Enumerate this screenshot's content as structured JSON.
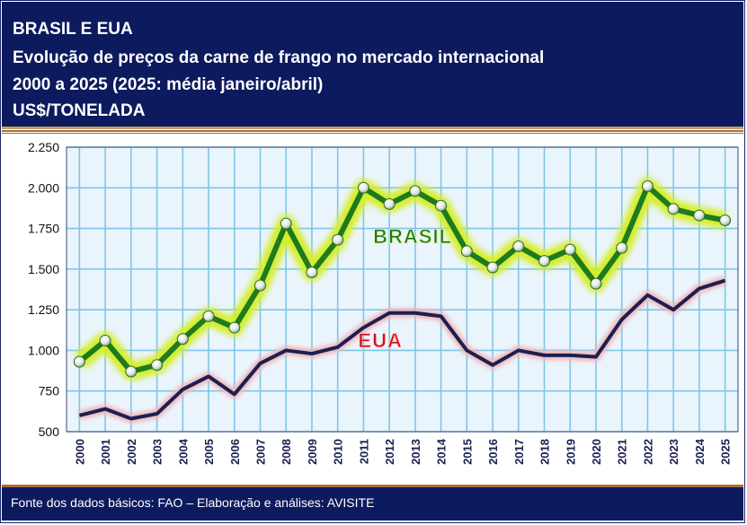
{
  "header": {
    "line1": "BRASIL E EUA",
    "line2": "Evolução de preços da carne de frango no mercado internacional",
    "line3": "2000 a 2025 (2025: média janeiro/abril)",
    "line4": "US$/TONELADA"
  },
  "footer": {
    "source": "Fonte dos dados básicos: FAO – Elaboração e análises: AVISITE"
  },
  "colors": {
    "brasil": "#1e7a1e",
    "brasil_glow": "#d4ee2a",
    "eua": "#1a2050",
    "eua_glow": "#f2b4b8",
    "eua_label": "#d40f16",
    "plot_bg": "#eaf4fc",
    "grid": "#7ec6e8"
  },
  "chart_data": {
    "type": "line",
    "title": "Evolução de preços da carne de frango no mercado internacional",
    "xlabel": "",
    "ylabel": "US$/TONELADA",
    "ylim": [
      500,
      2250
    ],
    "yticks": [
      "500",
      "750",
      "1.000",
      "1.250",
      "1.500",
      "1.750",
      "2.000",
      "2.250"
    ],
    "grid": true,
    "x": [
      "2000",
      "2001",
      "2002",
      "2003",
      "2004",
      "2005",
      "2006",
      "2007",
      "2008",
      "2009",
      "2010",
      "2011",
      "2012",
      "2013",
      "2014",
      "2015",
      "2016",
      "2017",
      "2018",
      "2019",
      "2020",
      "2021",
      "2022",
      "2023",
      "2024",
      "2025"
    ],
    "series": [
      {
        "name": "BRASIL",
        "values": [
          930,
          1060,
          870,
          910,
          1070,
          1210,
          1140,
          1400,
          1780,
          1480,
          1680,
          2000,
          1900,
          1980,
          1890,
          1610,
          1510,
          1640,
          1550,
          1620,
          1410,
          1630,
          2010,
          1870,
          1830,
          1800
        ]
      },
      {
        "name": "EUA",
        "values": [
          600,
          640,
          580,
          610,
          760,
          840,
          730,
          920,
          1000,
          980,
          1020,
          1140,
          1230,
          1230,
          1210,
          1000,
          910,
          1000,
          970,
          970,
          960,
          1190,
          1340,
          1250,
          1380,
          1430
        ]
      }
    ]
  }
}
